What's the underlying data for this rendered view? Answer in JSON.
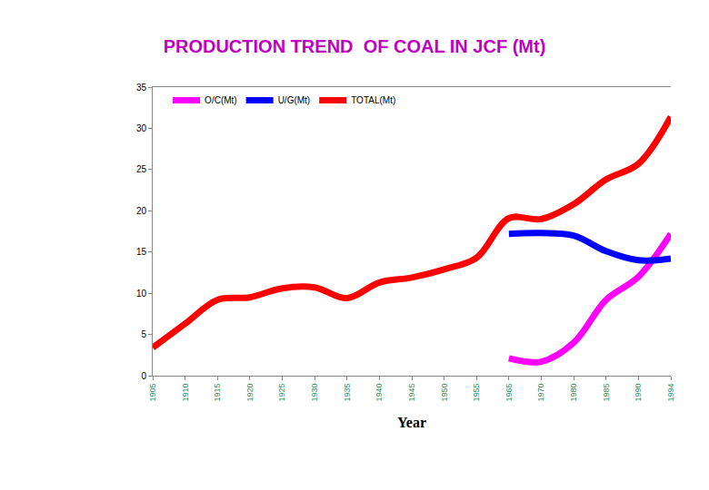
{
  "chart_data": {
    "type": "line",
    "title": "PRODUCTION TREND  OF COAL IN JCF (Mt)",
    "x_label": "Year",
    "categories": [
      "1905",
      "1910",
      "1915",
      "1920",
      "1925",
      "1930",
      "1935",
      "1940",
      "1945",
      "1950",
      "1955",
      "1965",
      "1970",
      "1980",
      "1985",
      "1990",
      "1994"
    ],
    "series": [
      {
        "name": "O/C(Mt)",
        "color": "#ff00ff",
        "values": [
          null,
          null,
          null,
          null,
          null,
          null,
          null,
          null,
          null,
          null,
          null,
          2.1,
          1.7,
          4.0,
          9.2,
          12.0,
          17.2
        ]
      },
      {
        "name": "U/G(Mt)",
        "color": "#0000ff",
        "values": [
          null,
          null,
          null,
          null,
          null,
          null,
          null,
          null,
          null,
          null,
          null,
          17.2,
          17.3,
          17.0,
          15.1,
          14.0,
          14.2
        ]
      },
      {
        "name": "TOTAL(Mt)",
        "color": "#ff0000",
        "values": [
          3.4,
          6.3,
          9.2,
          9.5,
          10.6,
          10.7,
          9.4,
          11.3,
          11.9,
          12.9,
          14.3,
          19.1,
          19.0,
          20.8,
          23.8,
          25.7,
          31.4
        ]
      }
    ],
    "ylim": [
      0,
      35
    ],
    "yticks": [
      0,
      5,
      10,
      15,
      20,
      25,
      30,
      35
    ],
    "grid": false,
    "legend": "upper left"
  }
}
